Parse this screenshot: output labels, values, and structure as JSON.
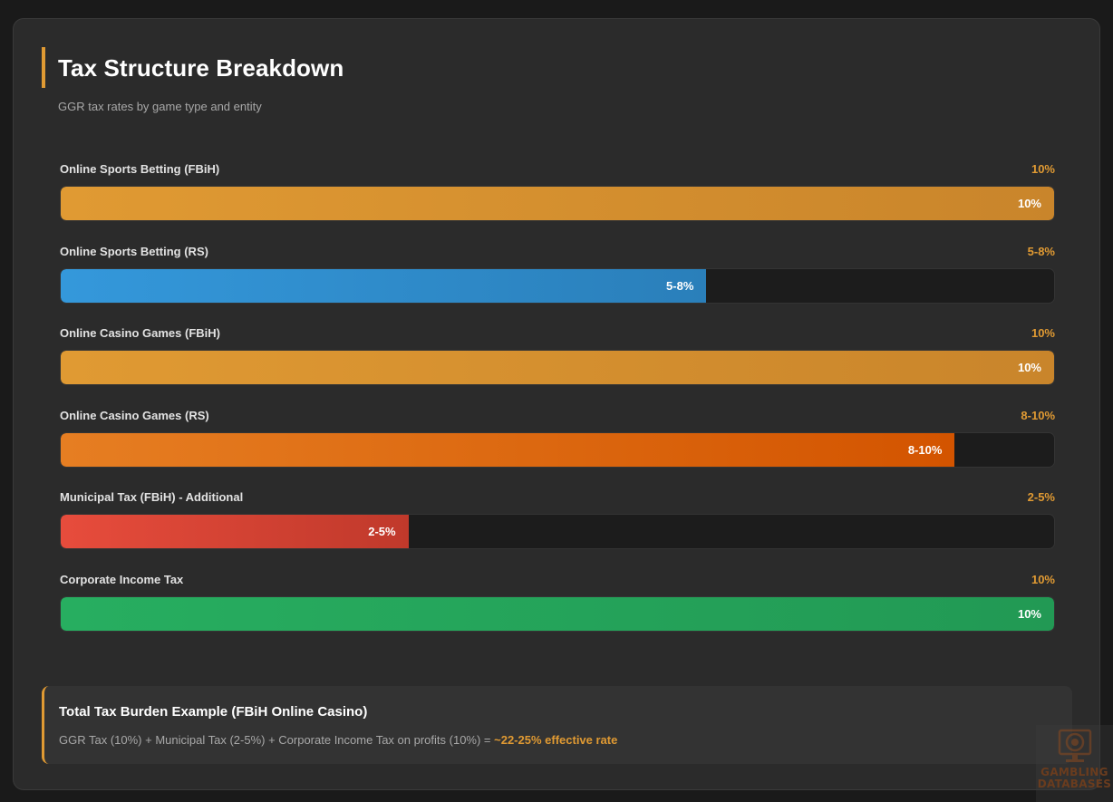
{
  "header": {
    "title": "Tax Structure Breakdown",
    "subtitle": "GGR tax rates by game type and entity",
    "accent_color": "#e09a33"
  },
  "rows": [
    {
      "label": "Online Sports Betting (FBiH)",
      "value": "10%",
      "bar_label": "10%",
      "fill_pct": 100,
      "gradient": [
        "#e09a33",
        "#c9852b"
      ]
    },
    {
      "label": "Online Sports Betting (RS)",
      "value": "5-8%",
      "bar_label": "5-8%",
      "fill_pct": 65,
      "gradient": [
        "#3498db",
        "#2a7fba"
      ]
    },
    {
      "label": "Online Casino Games (FBiH)",
      "value": "10%",
      "bar_label": "10%",
      "fill_pct": 100,
      "gradient": [
        "#e09a33",
        "#c9852b"
      ]
    },
    {
      "label": "Online Casino Games (RS)",
      "value": "8-10%",
      "bar_label": "8-10%",
      "fill_pct": 90,
      "gradient": [
        "#e67e22",
        "#d35400"
      ]
    },
    {
      "label": "Municipal Tax (FBiH) - Additional",
      "value": "2-5%",
      "bar_label": "2-5%",
      "fill_pct": 35,
      "gradient": [
        "#e74c3c",
        "#c0392b"
      ]
    },
    {
      "label": "Corporate Income Tax",
      "value": "10%",
      "bar_label": "10%",
      "fill_pct": 100,
      "gradient": [
        "#27ae60",
        "#229954"
      ]
    }
  ],
  "value_color": "#e09a33",
  "summary": {
    "title": "Total Tax Burden Example (FBiH Online Casino)",
    "text": "GGR Tax (10%) + Municipal Tax (2-5%) + Corporate Income Tax on profits (10%) = ",
    "highlight": "~22-25% effective rate"
  },
  "watermark": {
    "line1": "GAMBLING",
    "line2": "DATABASES"
  },
  "chart_data": {
    "type": "bar",
    "orientation": "horizontal",
    "title": "Tax Structure Breakdown",
    "subtitle": "GGR tax rates by game type and entity",
    "categories": [
      "Online Sports Betting (FBiH)",
      "Online Sports Betting (RS)",
      "Online Casino Games (FBiH)",
      "Online Casino Games (RS)",
      "Municipal Tax (FBiH) - Additional",
      "Corporate Income Tax"
    ],
    "value_labels": [
      "10%",
      "5-8%",
      "10%",
      "8-10%",
      "2-5%",
      "10%"
    ],
    "bar_fill_percent": [
      100,
      65,
      100,
      90,
      35,
      100
    ],
    "colors": [
      "#e09a33",
      "#3498db",
      "#e09a33",
      "#e67e22",
      "#e74c3c",
      "#27ae60"
    ],
    "xlabel": "",
    "ylabel": "",
    "grid": false,
    "legend": null,
    "annotation": "Total Tax Burden Example (FBiH Online Casino): GGR Tax (10%) + Municipal Tax (2-5%) + Corporate Income Tax on profits (10%) = ~22-25% effective rate"
  }
}
